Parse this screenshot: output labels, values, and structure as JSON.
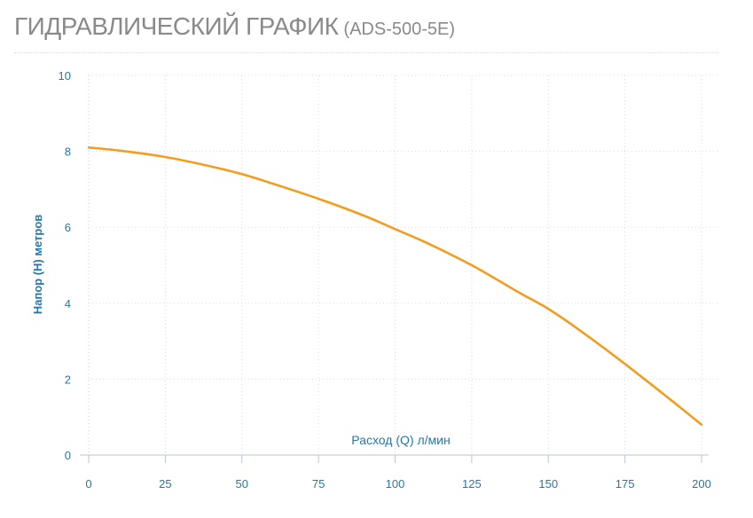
{
  "header": {
    "title": "ГИДРАВЛИЧЕСКИЙ ГРАФИК",
    "subtitle": "(ADS-500-5E)"
  },
  "chart_data": {
    "type": "line",
    "xlabel": "Расход (Q) л/мин",
    "ylabel": "Напор (H) метров",
    "xlim": [
      0,
      200
    ],
    "ylim": [
      0,
      10
    ],
    "x_ticks": [
      0,
      25,
      50,
      75,
      100,
      125,
      150,
      175,
      200
    ],
    "y_ticks": [
      0,
      2,
      4,
      6,
      8,
      10
    ],
    "grid": true,
    "legend": "none",
    "series": [
      {
        "color": "#f39c1f",
        "x": [
          0,
          10,
          25,
          40,
          50,
          60,
          75,
          90,
          100,
          110,
          125,
          140,
          150,
          160,
          175,
          190,
          200
        ],
        "y": [
          8.1,
          8.02,
          7.85,
          7.6,
          7.4,
          7.15,
          6.75,
          6.3,
          5.95,
          5.6,
          5.0,
          4.3,
          3.85,
          3.3,
          2.4,
          1.45,
          0.8
        ]
      }
    ]
  }
}
